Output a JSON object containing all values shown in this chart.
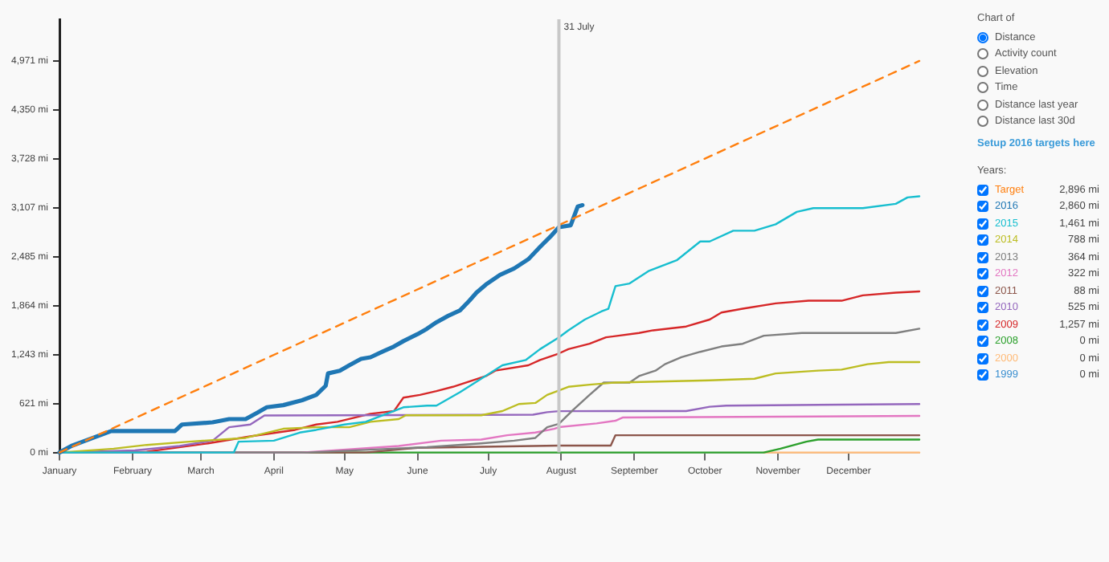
{
  "chart_data": {
    "type": "line",
    "legend": "right",
    "legend_title": "Years:",
    "marker": "none",
    "grid": false,
    "xlim": [
      "--01-01",
      "--12-31"
    ],
    "xticks": [
      {
        "value": "--01-01",
        "label": "January"
      },
      {
        "value": "--02-01",
        "label": "February"
      },
      {
        "value": "--03-01",
        "label": "March"
      },
      {
        "value": "--04-01",
        "label": "April"
      },
      {
        "value": "--05-01",
        "label": "May"
      },
      {
        "value": "--06-01",
        "label": "June"
      },
      {
        "value": "--07-01",
        "label": "July"
      },
      {
        "value": "--08-01",
        "label": "August"
      },
      {
        "value": "--09-01",
        "label": "September"
      },
      {
        "value": "--10-01",
        "label": "October"
      },
      {
        "value": "--11-01",
        "label": "November"
      },
      {
        "value": "--12-01",
        "label": "December"
      }
    ],
    "ylim": [
      0,
      5500
    ],
    "yticks": [
      {
        "value": 0,
        "label": "0 mi"
      },
      {
        "value": 621,
        "label": "621 mi"
      },
      {
        "value": 1243,
        "label": "1,243 mi"
      },
      {
        "value": 1864,
        "label": "1,864 mi"
      },
      {
        "value": 2485,
        "label": "2,485 mi"
      },
      {
        "value": 3107,
        "label": "3,107 mi"
      },
      {
        "value": 3728,
        "label": "3,728 mi"
      },
      {
        "value": 4350,
        "label": "4,350 mi"
      },
      {
        "value": 4971,
        "label": "4,971 mi"
      }
    ],
    "ref_lines": [
      {
        "axis": "x",
        "value": "--07-31",
        "label": "31 July",
        "color": "#c8c8c8"
      }
    ],
    "annotations": [
      "Chart of",
      "Distance",
      "Activity count",
      "Elevation",
      "Time",
      "Distance last year",
      "Distance last 30d",
      "Setup 2016 targets here",
      "2,896 mi",
      "2,860 mi",
      "1,461 mi",
      "788 mi",
      "364 mi",
      "322 mi",
      "88 mi",
      "525 mi",
      "1,257 mi",
      "0 mi",
      "0 mi",
      "0 mi"
    ],
    "series": [
      {
        "name": "Target",
        "color": "#ff7f0e",
        "line_style": "dashed",
        "x": [
          "--01-01",
          "--12-31"
        ],
        "values": [
          0,
          4971
        ]
      },
      {
        "name": "2016",
        "color": "#1f77b4",
        "x": [
          "--01-01",
          "--01-06",
          "--01-12",
          "--01-23",
          "--02-19",
          "--02-22",
          "--03-06",
          "--03-13",
          "--03-20",
          "--03-25",
          "--03-29",
          "--04-05",
          "--04-13",
          "--04-19",
          "--04-23",
          "--04-24",
          "--04-29",
          "--05-03",
          "--05-08",
          "--05-12",
          "--05-17",
          "--05-22",
          "--05-26",
          "--06-01",
          "--06-05",
          "--06-09",
          "--06-14",
          "--06-19",
          "--06-23",
          "--06-26",
          "--06-30",
          "--07-06",
          "--07-12",
          "--07-18",
          "--07-23",
          "--07-28",
          "--07-31",
          "--08-05",
          "--08-08",
          "--08-10"
        ],
        "values": [
          0,
          82,
          150,
          273,
          273,
          355,
          383,
          424,
          424,
          506,
          574,
          601,
          663,
          731,
          847,
          1004,
          1039,
          1107,
          1189,
          1209,
          1278,
          1346,
          1414,
          1503,
          1571,
          1653,
          1735,
          1804,
          1927,
          2029,
          2132,
          2255,
          2337,
          2453,
          2610,
          2760,
          2860,
          2884,
          3123,
          3140
        ]
      },
      {
        "name": "2015",
        "color": "#17becf",
        "x": [
          "--01-01",
          "--03-15",
          "--03-17",
          "--04-01",
          "--04-12",
          "--04-19",
          "--05-01",
          "--05-10",
          "--05-26",
          "--06-05",
          "--06-09",
          "--06-19",
          "--06-28",
          "--07-07",
          "--07-17",
          "--07-23",
          "--07-31",
          "--08-04",
          "--08-11",
          "--08-18",
          "--08-21",
          "--08-24",
          "--08-30",
          "--09-07",
          "--09-19",
          "--09-29",
          "--10-03",
          "--10-13",
          "--10-22",
          "--10-31",
          "--11-09",
          "--11-16",
          "--12-07",
          "--12-21",
          "--12-26",
          "--12-31"
        ],
        "values": [
          0,
          0,
          137,
          150,
          253,
          287,
          355,
          390,
          574,
          595,
          595,
          765,
          936,
          1107,
          1175,
          1312,
          1461,
          1551,
          1688,
          1790,
          1825,
          2112,
          2146,
          2303,
          2440,
          2679,
          2679,
          2815,
          2815,
          2897,
          3055,
          3102,
          3102,
          3157,
          3239,
          3253
        ]
      },
      {
        "name": "2014",
        "color": "#bcbd22",
        "x": [
          "--01-01",
          "--01-24",
          "--02-07",
          "--02-25",
          "--03-20",
          "--04-05",
          "--04-19",
          "--05-03",
          "--05-12",
          "--05-24",
          "--05-27",
          "--06-28",
          "--07-07",
          "--07-14",
          "--07-21",
          "--07-26",
          "--07-31",
          "--08-04",
          "--08-13",
          "--08-24",
          "--10-03",
          "--10-22",
          "--10-31",
          "--11-18",
          "--11-28",
          "--12-09",
          "--12-18",
          "--12-31"
        ],
        "values": [
          0,
          48,
          96,
          137,
          185,
          301,
          321,
          321,
          390,
          424,
          472,
          472,
          526,
          615,
          629,
          731,
          788,
          834,
          861,
          888,
          916,
          936,
          1004,
          1039,
          1052,
          1121,
          1148,
          1148
        ]
      },
      {
        "name": "2013",
        "color": "#7f7f7f",
        "x": [
          "--01-01",
          "--04-15",
          "--06-05",
          "--06-28",
          "--07-12",
          "--07-21",
          "--07-26",
          "--07-31",
          "--08-06",
          "--08-13",
          "--08-19",
          "--08-30",
          "--09-03",
          "--09-10",
          "--09-14",
          "--09-21",
          "--09-29",
          "--10-08",
          "--10-17",
          "--10-26",
          "--11-11",
          "--12-21",
          "--12-31"
        ],
        "values": [
          0,
          0,
          68,
          116,
          150,
          185,
          321,
          364,
          540,
          731,
          888,
          888,
          970,
          1039,
          1121,
          1210,
          1278,
          1346,
          1380,
          1483,
          1517,
          1517,
          1572
        ]
      },
      {
        "name": "2012",
        "color": "#e377c2",
        "x": [
          "--01-01",
          "--04-13",
          "--05-24",
          "--06-11",
          "--06-28",
          "--07-09",
          "--07-21",
          "--07-29",
          "--07-31",
          "--08-16",
          "--08-24",
          "--08-27",
          "--12-31"
        ],
        "values": [
          0,
          0,
          82,
          150,
          164,
          219,
          253,
          301,
          322,
          369,
          403,
          444,
          465
        ]
      },
      {
        "name": "2011",
        "color": "#8c564b",
        "x": [
          "--01-01",
          "--05-10",
          "--06-01",
          "--07-31",
          "--08-22",
          "--08-24",
          "--12-31"
        ],
        "values": [
          0,
          0,
          60,
          88,
          88,
          219,
          219
        ]
      },
      {
        "name": "2010",
        "color": "#9467bd",
        "x": [
          "--01-01",
          "--02-02",
          "--02-21",
          "--03-06",
          "--03-13",
          "--03-22",
          "--03-28",
          "--07-20",
          "--07-26",
          "--07-31",
          "--09-23",
          "--10-03",
          "--10-10",
          "--12-31"
        ],
        "values": [
          0,
          27,
          82,
          150,
          321,
          355,
          470,
          480,
          512,
          525,
          526,
          581,
          595,
          615
        ]
      },
      {
        "name": "2009",
        "color": "#d62728",
        "x": [
          "--01-01",
          "--02-07",
          "--03-04",
          "--03-22",
          "--04-10",
          "--04-19",
          "--04-28",
          "--05-12",
          "--05-22",
          "--05-26",
          "--06-02",
          "--06-09",
          "--06-16",
          "--06-23",
          "--06-30",
          "--07-04",
          "--07-18",
          "--07-23",
          "--07-31",
          "--08-04",
          "--08-13",
          "--08-20",
          "--09-03",
          "--09-09",
          "--09-23",
          "--10-03",
          "--10-08",
          "--10-17",
          "--10-31",
          "--11-14",
          "--11-28",
          "--12-07",
          "--12-21",
          "--12-31"
        ],
        "values": [
          0,
          10,
          116,
          205,
          287,
          355,
          390,
          492,
          526,
          697,
          731,
          779,
          834,
          902,
          970,
          1039,
          1107,
          1175,
          1257,
          1312,
          1380,
          1462,
          1517,
          1551,
          1599,
          1688,
          1777,
          1825,
          1893,
          1927,
          1927,
          1995,
          2030,
          2044
        ]
      },
      {
        "name": "2008",
        "color": "#2ca02c",
        "x": [
          "--01-01",
          "--10-26",
          "--11-02",
          "--11-13",
          "--11-18",
          "--12-31"
        ],
        "values": [
          0,
          0,
          48,
          137,
          164,
          164
        ]
      },
      {
        "name": "2000",
        "color": "#ffbb78",
        "x": [
          "--10-26",
          "--12-31"
        ],
        "values": [
          0,
          0
        ]
      },
      {
        "name": "1999",
        "color": "#3b8fd0"
      }
    ]
  }
}
